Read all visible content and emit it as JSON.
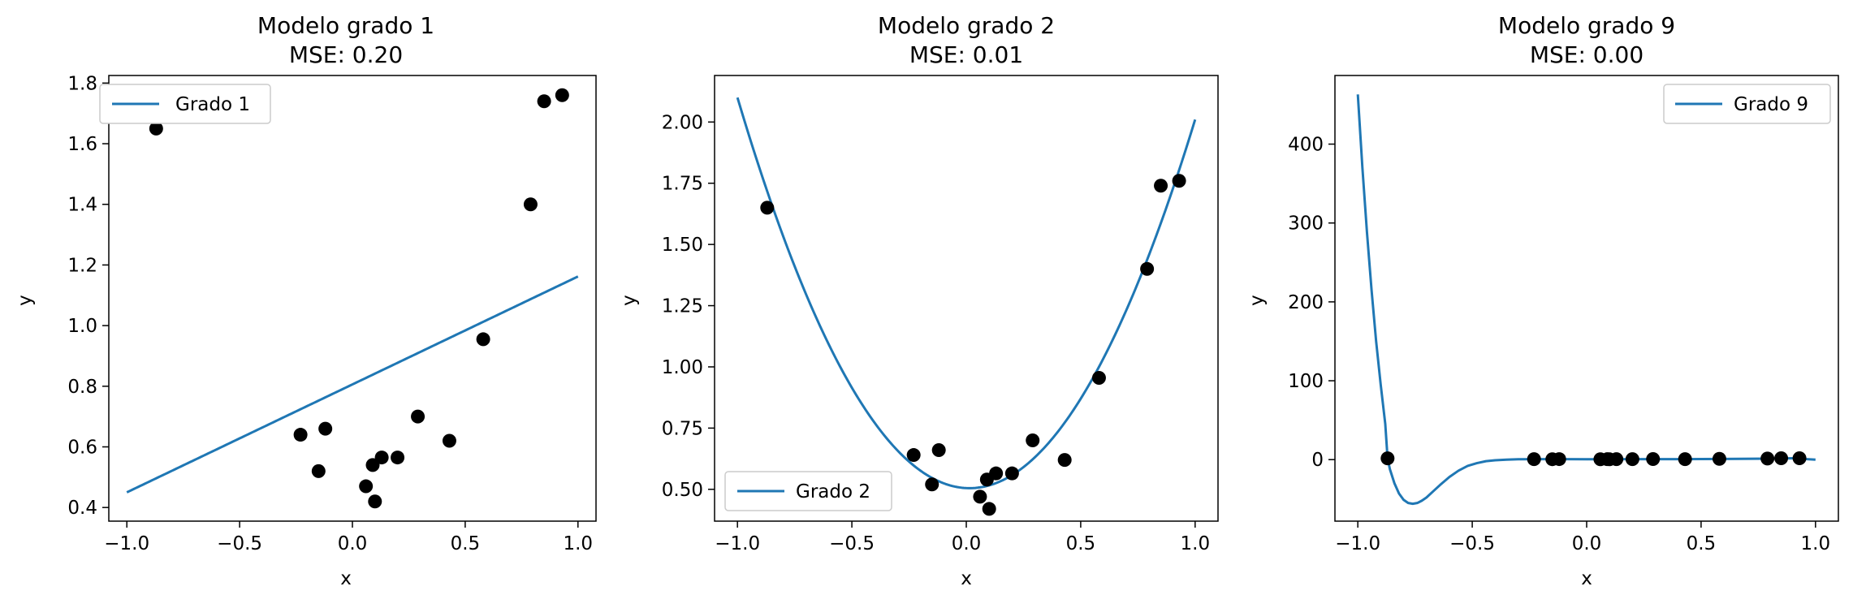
{
  "colors": {
    "line": "#1f77b4",
    "points": "#000000",
    "axes": "#000000",
    "legend_border": "#cccccc"
  },
  "scatter_points": {
    "x": [
      -0.87,
      -0.23,
      -0.15,
      -0.12,
      0.06,
      0.09,
      0.1,
      0.13,
      0.2,
      0.29,
      0.43,
      0.58,
      0.79,
      0.85,
      0.93
    ],
    "y": [
      1.65,
      0.64,
      0.52,
      0.66,
      0.47,
      0.54,
      0.42,
      0.565,
      0.565,
      0.7,
      0.62,
      0.955,
      1.4,
      1.74,
      1.76
    ]
  },
  "chart_data": [
    {
      "type": "line",
      "title": "Modelo grado 1",
      "subtitle": "MSE: 0.20",
      "xlabel": "x",
      "ylabel": "y",
      "xlim": [
        -1.08,
        1.08
      ],
      "ylim": [
        0.355,
        1.825
      ],
      "xticks": [
        -1.0,
        -0.5,
        0.0,
        0.5,
        1.0
      ],
      "xtick_labels": [
        "−1.0",
        "−0.5",
        "0.0",
        "0.5",
        "1.0"
      ],
      "yticks": [
        0.4,
        0.6,
        0.8,
        1.0,
        1.2,
        1.4,
        1.6,
        1.8
      ],
      "ytick_labels": [
        "0.4",
        "0.6",
        "0.8",
        "1.0",
        "1.2",
        "1.4",
        "1.6",
        "1.8"
      ],
      "series": [
        {
          "name": "Grado 1",
          "kind": "polynomial",
          "coefficients": [
            0.806,
            0.356
          ]
        }
      ],
      "legend_location": "upper left",
      "grid": false
    },
    {
      "type": "line",
      "title": "Modelo grado 2",
      "subtitle": "MSE: 0.01",
      "xlabel": "x",
      "ylabel": "y",
      "xlim": [
        -1.1,
        1.1
      ],
      "ylim": [
        0.37,
        2.19
      ],
      "xticks": [
        -1.0,
        -0.5,
        0.0,
        0.5,
        1.0
      ],
      "xtick_labels": [
        "−1.0",
        "−0.5",
        "0.0",
        "0.5",
        "1.0"
      ],
      "yticks": [
        0.5,
        0.75,
        1.0,
        1.25,
        1.5,
        1.75,
        2.0
      ],
      "ytick_labels": [
        "0.50",
        "0.75",
        "1.00",
        "1.25",
        "1.50",
        "1.75",
        "2.00"
      ],
      "series": [
        {
          "name": "Grado 2",
          "kind": "polynomial",
          "coefficients": [
            0.505,
            -0.045,
            1.55
          ]
        }
      ],
      "legend_location": "lower left",
      "grid": false
    },
    {
      "type": "line",
      "title": "Modelo grado 9",
      "subtitle": "MSE: 0.00",
      "xlabel": "x",
      "ylabel": "y",
      "xlim": [
        -1.1,
        1.1
      ],
      "ylim": [
        -78,
        487
      ],
      "xticks": [
        -1.0,
        -0.5,
        0.0,
        0.5,
        1.0
      ],
      "xtick_labels": [
        "−1.0",
        "−0.5",
        "0.0",
        "0.5",
        "1.0"
      ],
      "yticks": [
        0,
        100,
        200,
        300,
        400
      ],
      "ytick_labels": [
        "0",
        "100",
        "200",
        "300",
        "400"
      ],
      "series": [
        {
          "name": "Grado 9",
          "kind": "points",
          "x": [
            -1.0,
            -0.98,
            -0.96,
            -0.94,
            -0.92,
            -0.9,
            -0.88,
            -0.87,
            -0.86,
            -0.84,
            -0.82,
            -0.8,
            -0.78,
            -0.76,
            -0.74,
            -0.72,
            -0.7,
            -0.67,
            -0.64,
            -0.6,
            -0.56,
            -0.52,
            -0.48,
            -0.44,
            -0.4,
            -0.35,
            -0.3,
            -0.2,
            -0.1,
            0.0,
            0.2,
            0.4,
            0.6,
            0.8,
            0.9,
            1.0
          ],
          "y": [
            463,
            370,
            288,
            215,
            150,
            95,
            45,
            1.6,
            -12,
            -30,
            -43,
            -51,
            -55,
            -56,
            -55,
            -52,
            -48,
            -40,
            -32,
            -22,
            -14,
            -8,
            -4.5,
            -2,
            -0.8,
            0,
            0.5,
            0.6,
            0.6,
            0.5,
            0.6,
            0.6,
            0.9,
            1.3,
            1.7,
            0
          ]
        }
      ],
      "legend_location": "upper right",
      "grid": false
    }
  ]
}
